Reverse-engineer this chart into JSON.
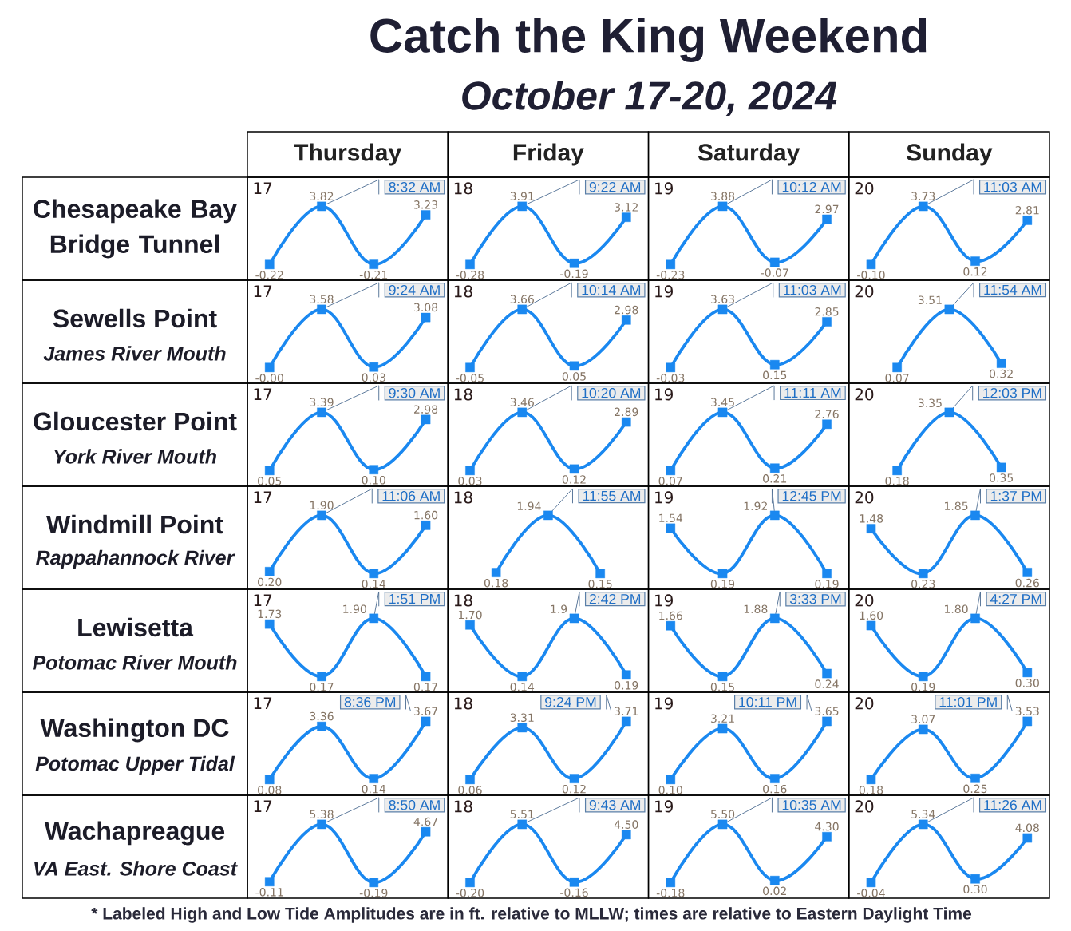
{
  "chart_data": [
    {
      "type": "other",
      "title": "Catch the King Weekend",
      "subtitle": "October 17-20, 2024"
    },
    {
      "type": "other",
      "title": "Chesapeake Bay Bridge Tunnel"
    },
    {
      "type": "line",
      "title": "Thursday",
      "categories": [
        null,
        null,
        null,
        null
      ],
      "values": [
        -0.22,
        3.82,
        -0.21,
        3.23
      ],
      "value_labels": [
        "-0.22",
        "3.82",
        "-0.21",
        "3.23"
      ],
      "color": "#1a88f0",
      "marker": "square",
      "tick_labels": false,
      "annotations": [
        "17",
        "8:32 AM"
      ]
    },
    {
      "type": "line",
      "title": "Friday",
      "categories": [
        null,
        null,
        null,
        null
      ],
      "values": [
        -0.28,
        3.91,
        -0.19,
        3.12
      ],
      "value_labels": [
        "-0.28",
        "3.91",
        "-0.19",
        "3.12"
      ],
      "color": "#1a88f0",
      "marker": "square",
      "tick_labels": false,
      "annotations": [
        "18",
        "9:22 AM"
      ]
    },
    {
      "type": "line",
      "title": "Saturday",
      "categories": [
        null,
        null,
        null,
        null
      ],
      "values": [
        -0.23,
        3.88,
        -0.07,
        2.97
      ],
      "value_labels": [
        "-0.23",
        "3.88",
        "-0.07",
        "2.97"
      ],
      "color": "#1a88f0",
      "marker": "square",
      "tick_labels": false,
      "annotations": [
        "19",
        "10:12 AM"
      ]
    },
    {
      "type": "line",
      "title": "Sunday",
      "categories": [
        null,
        null,
        null,
        null
      ],
      "values": [
        -0.1,
        3.73,
        0.12,
        2.81
      ],
      "value_labels": [
        "-0.10",
        "3.73",
        "0.12",
        "2.81"
      ],
      "color": "#1a88f0",
      "marker": "square",
      "tick_labels": false,
      "annotations": [
        "20",
        "11:03 AM"
      ]
    },
    {
      "type": "other",
      "title": "Sewells Point",
      "subtitle": "James River Mouth"
    },
    {
      "type": "line",
      "categories": [
        null,
        null,
        null,
        null
      ],
      "values": [
        0,
        3.58,
        0.03,
        3.08
      ],
      "value_labels": [
        "-0.00",
        "3.58",
        "0.03",
        "3.08"
      ],
      "color": "#1a88f0",
      "marker": "square",
      "tick_labels": false,
      "annotations": [
        "17",
        "9:24 AM"
      ]
    },
    {
      "type": "line",
      "categories": [
        null,
        null,
        null,
        null
      ],
      "values": [
        -0.05,
        3.66,
        0.05,
        2.98
      ],
      "value_labels": [
        "-0.05",
        "3.66",
        "0.05",
        "2.98"
      ],
      "color": "#1a88f0",
      "marker": "square",
      "tick_labels": false,
      "annotations": [
        "18",
        "10:14 AM"
      ]
    },
    {
      "type": "line",
      "categories": [
        null,
        null,
        null,
        null
      ],
      "values": [
        -0.03,
        3.63,
        0.15,
        2.85
      ],
      "value_labels": [
        "-0.03",
        "3.63",
        "0.15",
        "2.85"
      ],
      "color": "#1a88f0",
      "marker": "square",
      "tick_labels": false,
      "annotations": [
        "19",
        "11:03 AM"
      ]
    },
    {
      "type": "line",
      "categories": [
        null,
        null,
        null
      ],
      "values": [
        0.07,
        3.51,
        0.32
      ],
      "value_labels": [
        "0.07",
        "3.51",
        "0.32"
      ],
      "color": "#1a88f0",
      "marker": "square",
      "tick_labels": false,
      "annotations": [
        "20",
        "11:54 AM"
      ]
    },
    {
      "type": "other",
      "title": "Gloucester Point",
      "subtitle": "York River Mouth"
    },
    {
      "type": "line",
      "categories": [
        null,
        null,
        null,
        null
      ],
      "values": [
        0.05,
        3.39,
        0.1,
        2.98
      ],
      "value_labels": [
        "0.05",
        "3.39",
        "0.10",
        "2.98"
      ],
      "color": "#1a88f0",
      "marker": "square",
      "tick_labels": false,
      "annotations": [
        "17",
        "9:30 AM"
      ]
    },
    {
      "type": "line",
      "categories": [
        null,
        null,
        null,
        null
      ],
      "values": [
        0.03,
        3.46,
        0.12,
        2.89
      ],
      "value_labels": [
        "0.03",
        "3.46",
        "0.12",
        "2.89"
      ],
      "color": "#1a88f0",
      "marker": "square",
      "tick_labels": false,
      "annotations": [
        "18",
        "10:20 AM"
      ]
    },
    {
      "type": "line",
      "categories": [
        null,
        null,
        null,
        null
      ],
      "values": [
        0.07,
        3.45,
        0.21,
        2.76
      ],
      "value_labels": [
        "0.07",
        "3.45",
        "0.21",
        "2.76"
      ],
      "color": "#1a88f0",
      "marker": "square",
      "tick_labels": false,
      "annotations": [
        "19",
        "11:11 AM"
      ]
    },
    {
      "type": "line",
      "categories": [
        null,
        null,
        null
      ],
      "values": [
        0.18,
        3.35,
        0.35
      ],
      "value_labels": [
        "0.18",
        "3.35",
        "0.35"
      ],
      "color": "#1a88f0",
      "marker": "square",
      "tick_labels": false,
      "annotations": [
        "20",
        "12:03 PM"
      ]
    },
    {
      "type": "other",
      "title": "Windmill Point",
      "subtitle": "Rappahannock River"
    },
    {
      "type": "line",
      "categories": [
        null,
        null,
        null,
        null
      ],
      "values": [
        0.2,
        1.9,
        0.14,
        1.6
      ],
      "value_labels": [
        "0.20",
        "1.90",
        "0.14",
        "1.60"
      ],
      "color": "#1a88f0",
      "marker": "square",
      "tick_labels": false,
      "annotations": [
        "17",
        "11:06 AM"
      ]
    },
    {
      "type": "line",
      "categories": [
        null,
        null,
        null
      ],
      "values": [
        0.18,
        1.94,
        0.15
      ],
      "value_labels": [
        "0.18",
        "1.94",
        "0.15"
      ],
      "color": "#1a88f0",
      "marker": "square",
      "tick_labels": false,
      "annotations": [
        "18",
        "11:55 AM"
      ]
    },
    {
      "type": "line",
      "categories": [
        null,
        null,
        null,
        null
      ],
      "values": [
        1.54,
        0.19,
        1.92,
        0.19
      ],
      "value_labels": [
        "1.54",
        "0.19",
        "1.92",
        "0.19"
      ],
      "color": "#1a88f0",
      "marker": "square",
      "tick_labels": false,
      "annotations": [
        "19",
        "12:45 PM"
      ]
    },
    {
      "type": "line",
      "categories": [
        null,
        null,
        null,
        null
      ],
      "values": [
        1.48,
        0.23,
        1.85,
        0.26
      ],
      "value_labels": [
        "1.48",
        "0.23",
        "1.85",
        "0.26"
      ],
      "color": "#1a88f0",
      "marker": "square",
      "tick_labels": false,
      "annotations": [
        "20",
        "1:37 PM"
      ]
    },
    {
      "type": "other",
      "title": "Lewisetta",
      "subtitle": "Potomac River Mouth"
    },
    {
      "type": "line",
      "categories": [
        null,
        null,
        null,
        null
      ],
      "values": [
        1.73,
        0.17,
        1.9,
        0.17
      ],
      "value_labels": [
        "1.73",
        "0.17",
        "1.90",
        "0.17"
      ],
      "color": "#1a88f0",
      "marker": "square",
      "tick_labels": false,
      "annotations": [
        "17",
        "1:51 PM"
      ]
    },
    {
      "type": "line",
      "categories": [
        null,
        null,
        null,
        null
      ],
      "values": [
        1.7,
        0.14,
        1.9,
        0.19
      ],
      "value_labels": [
        "1.70",
        "0.14",
        "1.9",
        "0.19"
      ],
      "color": "#1a88f0",
      "marker": "square",
      "tick_labels": false,
      "annotations": [
        "18",
        "2:42 PM"
      ]
    },
    {
      "type": "line",
      "categories": [
        null,
        null,
        null,
        null
      ],
      "values": [
        1.66,
        0.15,
        1.88,
        0.24
      ],
      "value_labels": [
        "1.66",
        "0.15",
        "1.88",
        "0.24"
      ],
      "color": "#1a88f0",
      "marker": "square",
      "tick_labels": false,
      "annotations": [
        "19",
        "3:33 PM"
      ]
    },
    {
      "type": "line",
      "categories": [
        null,
        null,
        null,
        null
      ],
      "values": [
        1.6,
        0.19,
        1.8,
        0.3
      ],
      "value_labels": [
        "1.60",
        "0.19",
        "1.80",
        "0.30"
      ],
      "color": "#1a88f0",
      "marker": "square",
      "tick_labels": false,
      "annotations": [
        "20",
        "4:27 PM"
      ]
    },
    {
      "type": "other",
      "title": "Washington DC",
      "subtitle": "Potomac Upper Tidal"
    },
    {
      "type": "line",
      "categories": [
        null,
        null,
        null,
        null
      ],
      "values": [
        0.08,
        3.36,
        0.14,
        3.67
      ],
      "value_labels": [
        "0.08",
        "3.36",
        "0.14",
        "3.67"
      ],
      "color": "#1a88f0",
      "marker": "square",
      "tick_labels": false,
      "annotations": [
        "17",
        "8:36 PM"
      ]
    },
    {
      "type": "line",
      "categories": [
        null,
        null,
        null,
        null
      ],
      "values": [
        0.06,
        3.31,
        0.12,
        3.71
      ],
      "value_labels": [
        "0.06",
        "3.31",
        "0.12",
        "3.71"
      ],
      "color": "#1a88f0",
      "marker": "square",
      "tick_labels": false,
      "annotations": [
        "18",
        "9:24 PM"
      ]
    },
    {
      "type": "line",
      "categories": [
        null,
        null,
        null,
        null
      ],
      "values": [
        0.1,
        3.21,
        0.16,
        3.65
      ],
      "value_labels": [
        "0.10",
        "3.21",
        "0.16",
        "3.65"
      ],
      "color": "#1a88f0",
      "marker": "square",
      "tick_labels": false,
      "annotations": [
        "19",
        "10:11 PM"
      ]
    },
    {
      "type": "line",
      "categories": [
        null,
        null,
        null,
        null
      ],
      "values": [
        0.18,
        3.07,
        0.25,
        3.53
      ],
      "value_labels": [
        "0.18",
        "3.07",
        "0.25",
        "3.53"
      ],
      "color": "#1a88f0",
      "marker": "square",
      "tick_labels": false,
      "annotations": [
        "20",
        "11:01 PM"
      ]
    },
    {
      "type": "other",
      "title": "Wachapreague",
      "subtitle": "VA East. Shore Coast"
    },
    {
      "type": "line",
      "categories": [
        null,
        null,
        null,
        null
      ],
      "values": [
        -0.11,
        5.38,
        -0.19,
        4.67
      ],
      "value_labels": [
        "-0.11",
        "5.38",
        "-0.19",
        "4.67"
      ],
      "color": "#1a88f0",
      "marker": "square",
      "tick_labels": false,
      "annotations": [
        "17",
        "8:50 AM"
      ]
    },
    {
      "type": "line",
      "categories": [
        null,
        null,
        null,
        null
      ],
      "values": [
        -0.2,
        5.51,
        -0.16,
        4.5
      ],
      "value_labels": [
        "-0.20",
        "5.51",
        "-0.16",
        "4.50"
      ],
      "color": "#1a88f0",
      "marker": "square",
      "tick_labels": false,
      "annotations": [
        "18",
        "9:43 AM"
      ]
    },
    {
      "type": "line",
      "categories": [
        null,
        null,
        null,
        null
      ],
      "values": [
        -0.18,
        5.5,
        0.02,
        4.3
      ],
      "value_labels": [
        "-0.18",
        "5.50",
        "0.02",
        "4.30"
      ],
      "color": "#1a88f0",
      "marker": "square",
      "tick_labels": false,
      "annotations": [
        "19",
        "10:35 AM"
      ]
    },
    {
      "type": "line",
      "categories": [
        null,
        null,
        null,
        null
      ],
      "values": [
        -0.04,
        5.34,
        0.3,
        4.08
      ],
      "value_labels": [
        "-0.04",
        "5.34",
        "0.30",
        "4.08"
      ],
      "color": "#1a88f0",
      "marker": "square",
      "tick_labels": false,
      "annotations": [
        "20",
        "11:26 AM"
      ]
    },
    {
      "type": "other",
      "annotations": [
        "* Labeled High and Low Tide Amplitudes are in ft. relative to MLLW; times are relative to Eastern Daylight Time"
      ]
    }
  ]
}
